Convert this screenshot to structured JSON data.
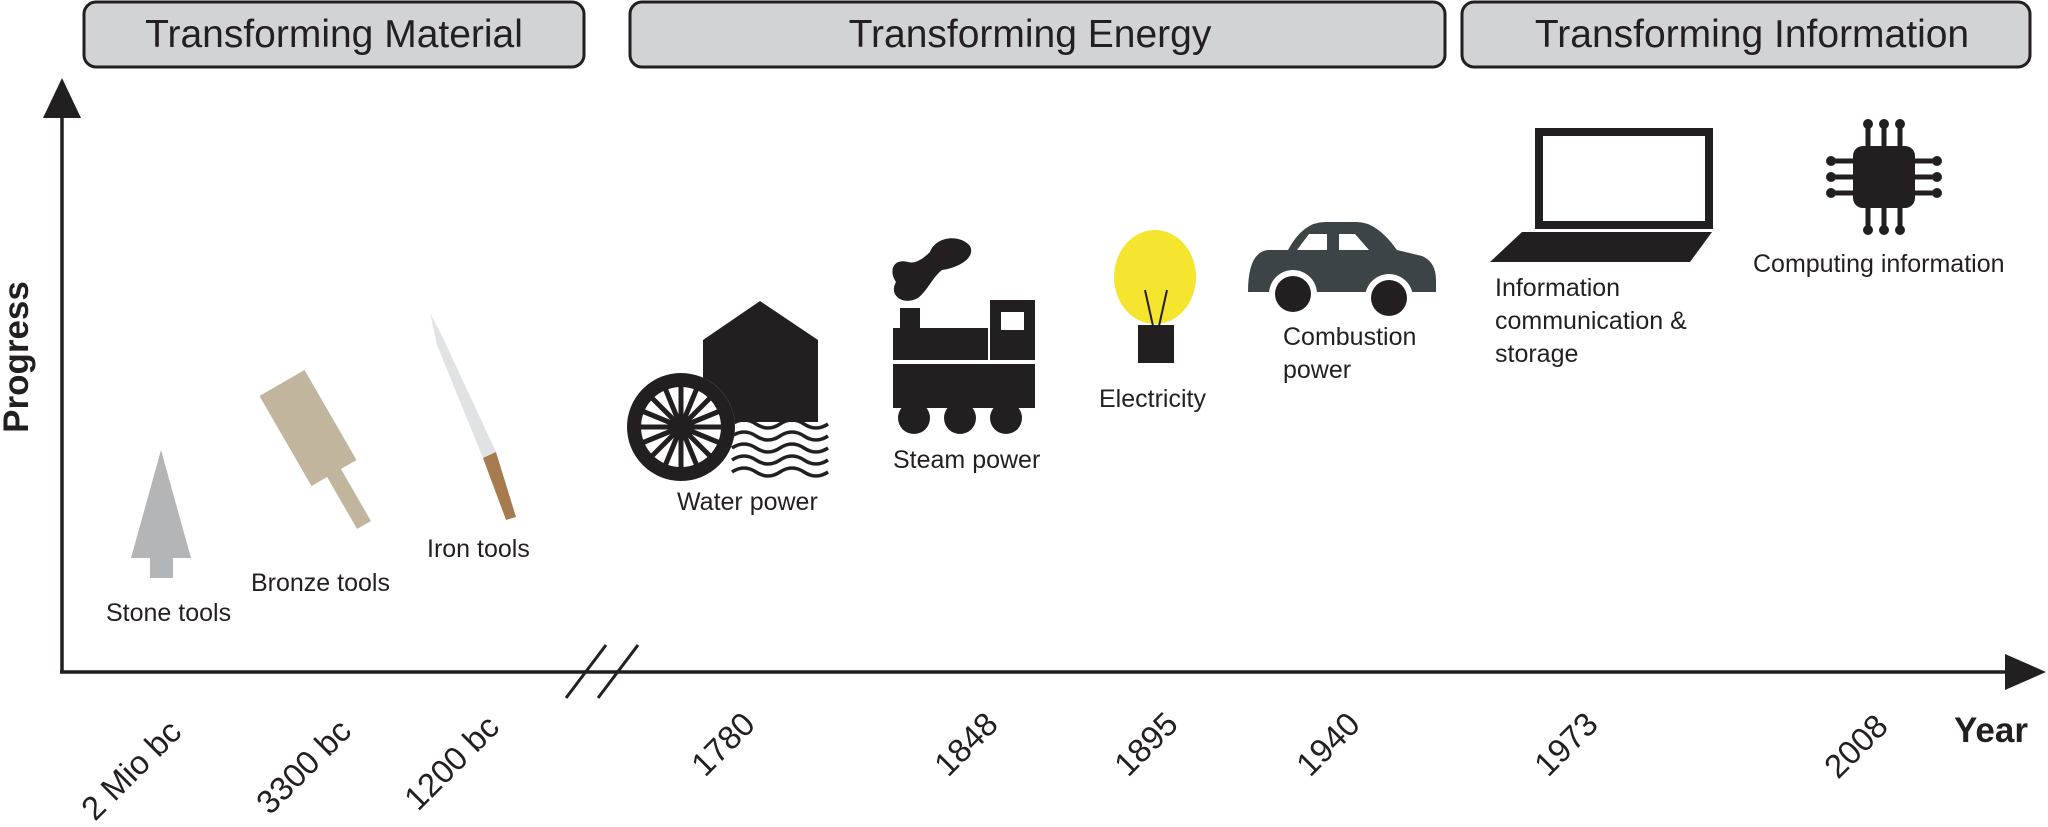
{
  "phases": [
    {
      "label": "Transforming Material"
    },
    {
      "label": "Transforming Energy"
    },
    {
      "label": "Transforming Information"
    }
  ],
  "axes": {
    "y_title": "Progress",
    "x_title": "Year"
  },
  "years": [
    "2 Mio bc",
    "3300 bc",
    "1200 bc",
    "1780",
    "1848",
    "1895",
    "1940",
    "1973",
    "2008"
  ],
  "milestones": {
    "stone": {
      "lines": [
        "Stone tools"
      ],
      "icon": "stone-tool-icon"
    },
    "bronze": {
      "lines": [
        "Bronze tools"
      ],
      "icon": "bronze-tool-icon"
    },
    "iron": {
      "lines": [
        "Iron tools"
      ],
      "icon": "iron-tool-icon"
    },
    "water": {
      "lines": [
        "Water power"
      ],
      "icon": "water-wheel-icon"
    },
    "steam": {
      "lines": [
        "Steam power"
      ],
      "icon": "locomotive-icon"
    },
    "electricity": {
      "lines": [
        "Electricity"
      ],
      "icon": "light-bulb-icon"
    },
    "combustion": {
      "lines": [
        "Combustion",
        "power"
      ],
      "icon": "car-icon"
    },
    "information": {
      "lines": [
        "Information",
        "communication &",
        "storage"
      ],
      "icon": "laptop-icon"
    },
    "computing": {
      "lines": [
        "Computing information"
      ],
      "icon": "microchip-icon"
    }
  },
  "colors": {
    "ink": "#231f20",
    "phase_fill": "#d1d3d4",
    "stone": "#b2b6b9",
    "bronze": "#c1b59e",
    "iron_blade": "#e1e2e3",
    "iron_handle": "#a77a4f",
    "bulb": "#f5e52f",
    "car": "#3d4447"
  }
}
